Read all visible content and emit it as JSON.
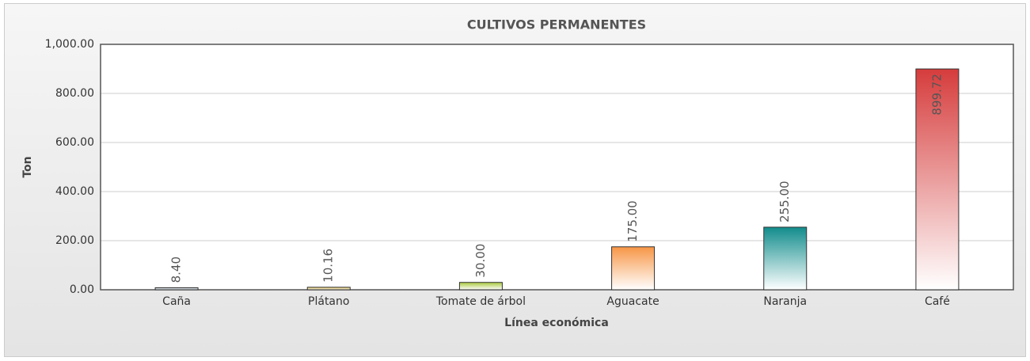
{
  "chart_data": {
    "type": "bar",
    "title": "CULTIVOS PERMANENTES",
    "x_label": "Línea económica",
    "y_label": "Ton",
    "categories": [
      "Caña",
      "Plátano",
      "Tomate de árbol",
      "Aguacate",
      "Naranja",
      "Café"
    ],
    "values": [
      8.4,
      10.16,
      30,
      175,
      255,
      899.72
    ],
    "value_labels": [
      "8.40",
      "10.16",
      "30.00",
      "175.00",
      "255.00",
      "899.72"
    ],
    "colors": [
      "#9aaab4",
      "#d8b84a",
      "#a8c83c",
      "#f79646",
      "#128c8c",
      "#d63c3c"
    ],
    "ylim": [
      0,
      1000
    ],
    "yticks": [
      {
        "value": 0,
        "label": "0.00"
      },
      {
        "value": 200,
        "label": "200.00"
      },
      {
        "value": 400,
        "label": "400.00"
      },
      {
        "value": 600,
        "label": "600.00"
      },
      {
        "value": 800,
        "label": "800.00"
      },
      {
        "value": 1000,
        "label": "1,000.00"
      }
    ],
    "grid": true
  }
}
